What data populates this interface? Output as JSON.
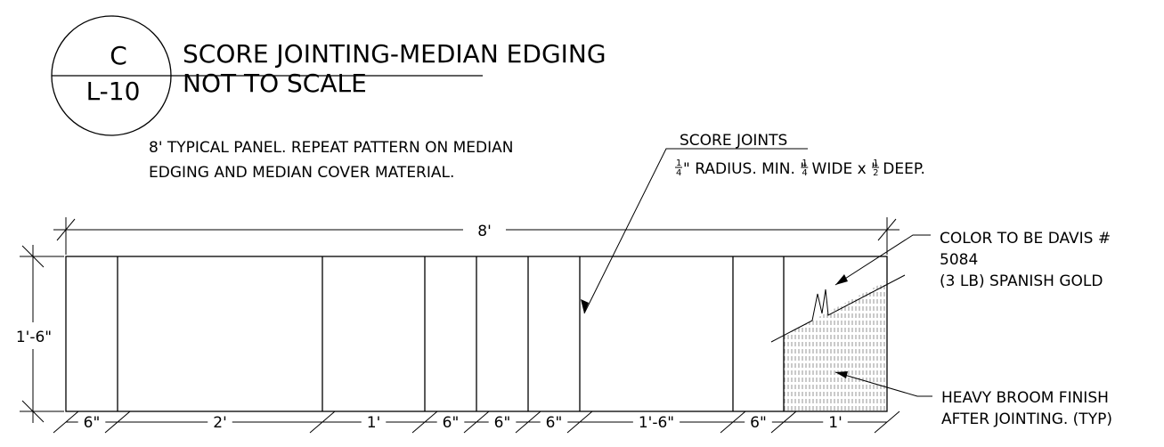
{
  "title_block": {
    "detail_letter": "C",
    "sheet_number": "L-10",
    "title": "SCORE JOINTING-MEDIAN EDGING",
    "scale_note": "NOT TO SCALE"
  },
  "panel_note": {
    "line1": "8' TYPICAL PANEL. REPEAT PATTERN ON MEDIAN",
    "line2": "EDGING AND MEDIAN COVER MATERIAL."
  },
  "score_joints": {
    "heading": "SCORE JOINTS",
    "radius_frac": "1/4",
    "text_a": "\" RADIUS. MIN. ",
    "width_frac": "1/4",
    "text_b": "\" WIDE x ",
    "depth_frac": "1/2",
    "text_c": "\" DEEP."
  },
  "color_note": {
    "line1": "COLOR TO BE DAVIS #",
    "line2": "5084",
    "line3": "(3 LB) SPANISH GOLD"
  },
  "finish_note": {
    "line1": "HEAVY BROOM FINISH",
    "line2": "AFTER JOINTING. (TYP)"
  },
  "dimensions": {
    "overall_length": "8'",
    "height": "1'-6\"",
    "segments": [
      "6\"",
      "2'",
      "1'",
      "6\"",
      "6\"",
      "6\"",
      "1'-6\"",
      "6\"",
      "1'"
    ]
  }
}
